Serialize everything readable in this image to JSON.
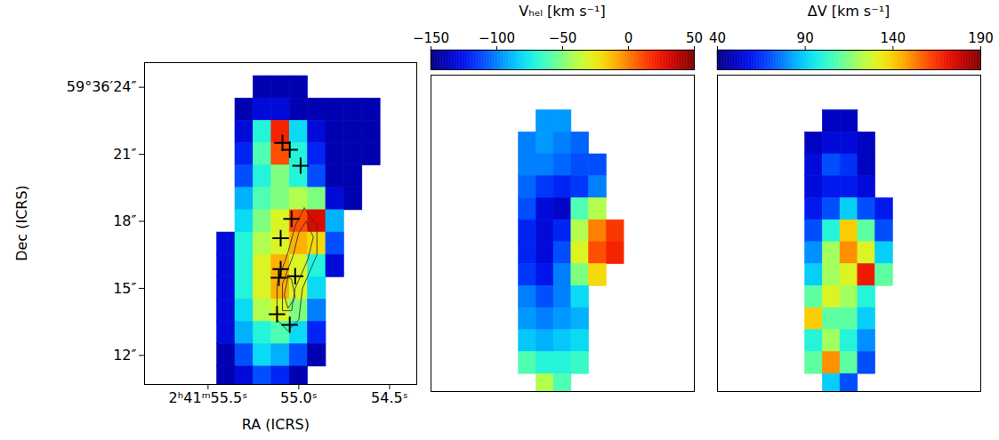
{
  "chart_data": [
    {
      "type": "heatmap",
      "xlabel": "RA (ICRS)",
      "ylabel": "Dec (ICRS)",
      "xlim": [
        55.85,
        54.35
      ],
      "ylim": [
        10.7,
        25.1
      ],
      "xticks": [
        {
          "value": 55.5,
          "label": "2ʰ41ᵐ55.5ˢ"
        },
        {
          "value": 55.0,
          "label": "55.0ˢ"
        },
        {
          "value": 54.5,
          "label": "54.5ˢ"
        }
      ],
      "yticks": [
        {
          "value": 24,
          "label": "59°36′24″"
        },
        {
          "value": 21,
          "label": "21″"
        },
        {
          "value": 18,
          "label": "18″"
        },
        {
          "value": 15,
          "label": "15″"
        },
        {
          "value": 12,
          "label": "12″"
        }
      ],
      "ra": [
        55.5,
        55.4,
        55.3,
        55.2,
        55.1,
        55.0,
        54.9,
        54.8,
        54.7,
        54.6,
        54.5
      ],
      "dec": [
        24,
        23,
        22,
        21,
        20,
        19,
        18,
        17,
        16,
        15,
        14,
        13,
        12,
        11
      ],
      "ra_step": 0.1,
      "dec_step": 1,
      "color_range": [
        0,
        1
      ],
      "cells": [
        [
          null,
          null,
          null,
          0.05,
          0.05,
          0.05,
          null,
          null,
          null,
          null,
          null
        ],
        [
          null,
          null,
          0.05,
          0.1,
          0.1,
          0.05,
          0.05,
          0.05,
          0.05,
          0.05,
          null
        ],
        [
          null,
          null,
          0.1,
          0.4,
          0.85,
          0.35,
          0.1,
          0.05,
          0.05,
          0.05,
          null
        ],
        [
          null,
          null,
          0.15,
          0.45,
          0.8,
          0.4,
          0.15,
          0.05,
          0.05,
          0.05,
          null
        ],
        [
          null,
          null,
          0.2,
          0.4,
          0.5,
          0.4,
          0.2,
          0.05,
          0.05,
          null,
          null
        ],
        [
          null,
          null,
          0.3,
          0.45,
          0.5,
          0.55,
          0.5,
          0.1,
          0.05,
          null,
          null
        ],
        [
          null,
          null,
          0.35,
          0.5,
          0.6,
          0.8,
          0.9,
          0.3,
          null,
          null,
          null
        ],
        [
          null,
          0.1,
          0.4,
          0.55,
          0.6,
          0.7,
          0.65,
          0.2,
          null,
          null,
          null
        ],
        [
          null,
          0.1,
          0.4,
          0.6,
          0.7,
          0.6,
          0.4,
          0.1,
          null,
          null,
          null
        ],
        [
          null,
          0.1,
          0.4,
          0.6,
          0.7,
          0.6,
          0.35,
          null,
          null,
          null,
          null
        ],
        [
          null,
          0.1,
          0.35,
          0.55,
          0.6,
          0.5,
          0.25,
          null,
          null,
          null,
          null
        ],
        [
          null,
          0.1,
          0.3,
          0.4,
          0.45,
          0.35,
          0.15,
          null,
          null,
          null,
          null
        ],
        [
          null,
          0.05,
          0.2,
          0.35,
          0.3,
          0.2,
          0.05,
          null,
          null,
          null,
          null
        ],
        [
          null,
          0.05,
          0.1,
          0.2,
          0.15,
          0.05,
          null,
          null,
          null,
          null,
          null
        ]
      ],
      "markers": {
        "marker": "plus",
        "color": "#000000",
        "ra": [
          55.09,
          55.05,
          54.99,
          55.04,
          55.1,
          55.1,
          55.11,
          55.02,
          55.12,
          55.05
        ],
        "dec": [
          21.51,
          21.2,
          20.49,
          18.11,
          17.24,
          15.86,
          15.47,
          15.54,
          13.84,
          13.37
        ]
      },
      "contours": [
        {
          "ra": [
            54.97,
            54.9,
            54.9,
            54.98,
            55.0,
            55.06,
            55.12,
            55.12,
            55.06,
            55.02,
            54.97
          ],
          "dec": [
            18.6,
            17.8,
            16.5,
            15.0,
            13.6,
            13.1,
            13.6,
            15.2,
            16.6,
            17.8,
            18.6
          ]
        },
        {
          "ra": [
            54.96,
            54.92,
            54.95,
            55.02,
            55.04,
            55.09,
            55.09,
            55.03,
            55.0,
            54.96
          ],
          "dec": [
            18.0,
            17.3,
            16.3,
            15.0,
            14.0,
            14.0,
            15.2,
            16.5,
            17.5,
            18.0
          ]
        },
        {
          "ra": [
            55.04,
            55.02,
            55.06,
            55.08,
            55.06,
            55.04
          ],
          "dec": [
            15.4,
            14.6,
            14.1,
            14.7,
            15.5,
            15.4
          ]
        }
      ]
    },
    {
      "type": "heatmap",
      "colorbar_label": "Vₕₑₗ [km s⁻¹]",
      "colorbar_range": [
        -150,
        50
      ],
      "colorbar_ticks": [
        -150,
        -100,
        -50,
        0,
        50
      ],
      "tick_labels": false,
      "xlim": [
        55.85,
        54.35
      ],
      "ylim": [
        10.7,
        25.1
      ],
      "ra": [
        55.5,
        55.4,
        55.3,
        55.2,
        55.1,
        55.0,
        54.9,
        54.8,
        54.7,
        54.6,
        54.5
      ],
      "dec": [
        24,
        23,
        22,
        21,
        20,
        19,
        18,
        17,
        16,
        15,
        14,
        13,
        12,
        11
      ],
      "ra_step": 0.1,
      "dec_step": 1,
      "cells": [
        [
          null,
          null,
          null,
          null,
          null,
          null,
          null,
          null,
          null,
          null,
          null
        ],
        [
          null,
          null,
          null,
          -95,
          -95,
          null,
          null,
          null,
          null,
          null,
          null
        ],
        [
          null,
          null,
          -100,
          -95,
          -100,
          -105,
          null,
          null,
          null,
          null,
          null
        ],
        [
          null,
          null,
          -100,
          -100,
          -105,
          -110,
          -110,
          null,
          null,
          null,
          null
        ],
        [
          null,
          null,
          -105,
          -115,
          -120,
          -115,
          -100,
          null,
          null,
          null,
          null
        ],
        [
          null,
          null,
          -110,
          -130,
          -135,
          -60,
          -40,
          null,
          null,
          null,
          null
        ],
        [
          null,
          null,
          -120,
          -130,
          -120,
          -40,
          0,
          15,
          null,
          null,
          null
        ],
        [
          null,
          null,
          -120,
          -130,
          -110,
          -30,
          10,
          20,
          null,
          null,
          null
        ],
        [
          null,
          null,
          -115,
          -125,
          -100,
          -50,
          -20,
          null,
          null,
          null,
          null
        ],
        [
          null,
          null,
          -100,
          -110,
          -100,
          -80,
          null,
          null,
          null,
          null,
          null
        ],
        [
          null,
          null,
          -95,
          -100,
          -95,
          -90,
          null,
          null,
          null,
          null,
          null
        ],
        [
          null,
          null,
          -85,
          -90,
          -85,
          -80,
          null,
          null,
          null,
          null,
          null
        ],
        [
          null,
          null,
          -60,
          -70,
          -70,
          -65,
          null,
          null,
          null,
          null,
          null
        ],
        [
          null,
          null,
          null,
          -40,
          -60,
          null,
          null,
          null,
          null,
          null,
          null
        ]
      ]
    },
    {
      "type": "heatmap",
      "colorbar_label": "ΔV [km s⁻¹]",
      "colorbar_range": [
        40,
        190
      ],
      "colorbar_ticks": [
        40,
        90,
        140,
        190
      ],
      "tick_labels": false,
      "xlim": [
        55.85,
        54.35
      ],
      "ylim": [
        10.7,
        25.1
      ],
      "ra": [
        55.5,
        55.4,
        55.3,
        55.2,
        55.1,
        55.0,
        54.9,
        54.8,
        54.7,
        54.6,
        54.5
      ],
      "dec": [
        24,
        23,
        22,
        21,
        20,
        19,
        18,
        17,
        16,
        15,
        14,
        13,
        12,
        11
      ],
      "ra_step": 0.1,
      "dec_step": 1,
      "cells": [
        [
          null,
          null,
          null,
          null,
          null,
          null,
          null,
          null,
          null,
          null,
          null
        ],
        [
          null,
          null,
          null,
          50,
          50,
          null,
          null,
          null,
          null,
          null,
          null
        ],
        [
          null,
          null,
          50,
          55,
          55,
          50,
          null,
          null,
          null,
          null,
          null
        ],
        [
          null,
          null,
          55,
          70,
          65,
          50,
          null,
          null,
          null,
          null,
          null
        ],
        [
          null,
          null,
          55,
          60,
          60,
          55,
          null,
          null,
          null,
          null,
          null
        ],
        [
          null,
          null,
          60,
          70,
          90,
          70,
          60,
          null,
          null,
          null,
          null
        ],
        [
          null,
          null,
          70,
          100,
          140,
          110,
          70,
          null,
          null,
          null,
          null
        ],
        [
          null,
          null,
          80,
          120,
          150,
          130,
          90,
          null,
          null,
          null,
          null
        ],
        [
          null,
          null,
          90,
          120,
          130,
          170,
          110,
          null,
          null,
          null,
          null
        ],
        [
          null,
          null,
          110,
          130,
          120,
          100,
          null,
          null,
          null,
          null,
          null
        ],
        [
          null,
          null,
          140,
          110,
          110,
          90,
          null,
          null,
          null,
          null,
          null
        ],
        [
          null,
          null,
          100,
          120,
          100,
          80,
          null,
          null,
          null,
          null,
          null
        ],
        [
          null,
          null,
          110,
          150,
          110,
          70,
          null,
          null,
          null,
          null,
          null
        ],
        [
          null,
          null,
          null,
          90,
          70,
          null,
          null,
          null,
          null,
          null,
          null
        ]
      ]
    }
  ]
}
